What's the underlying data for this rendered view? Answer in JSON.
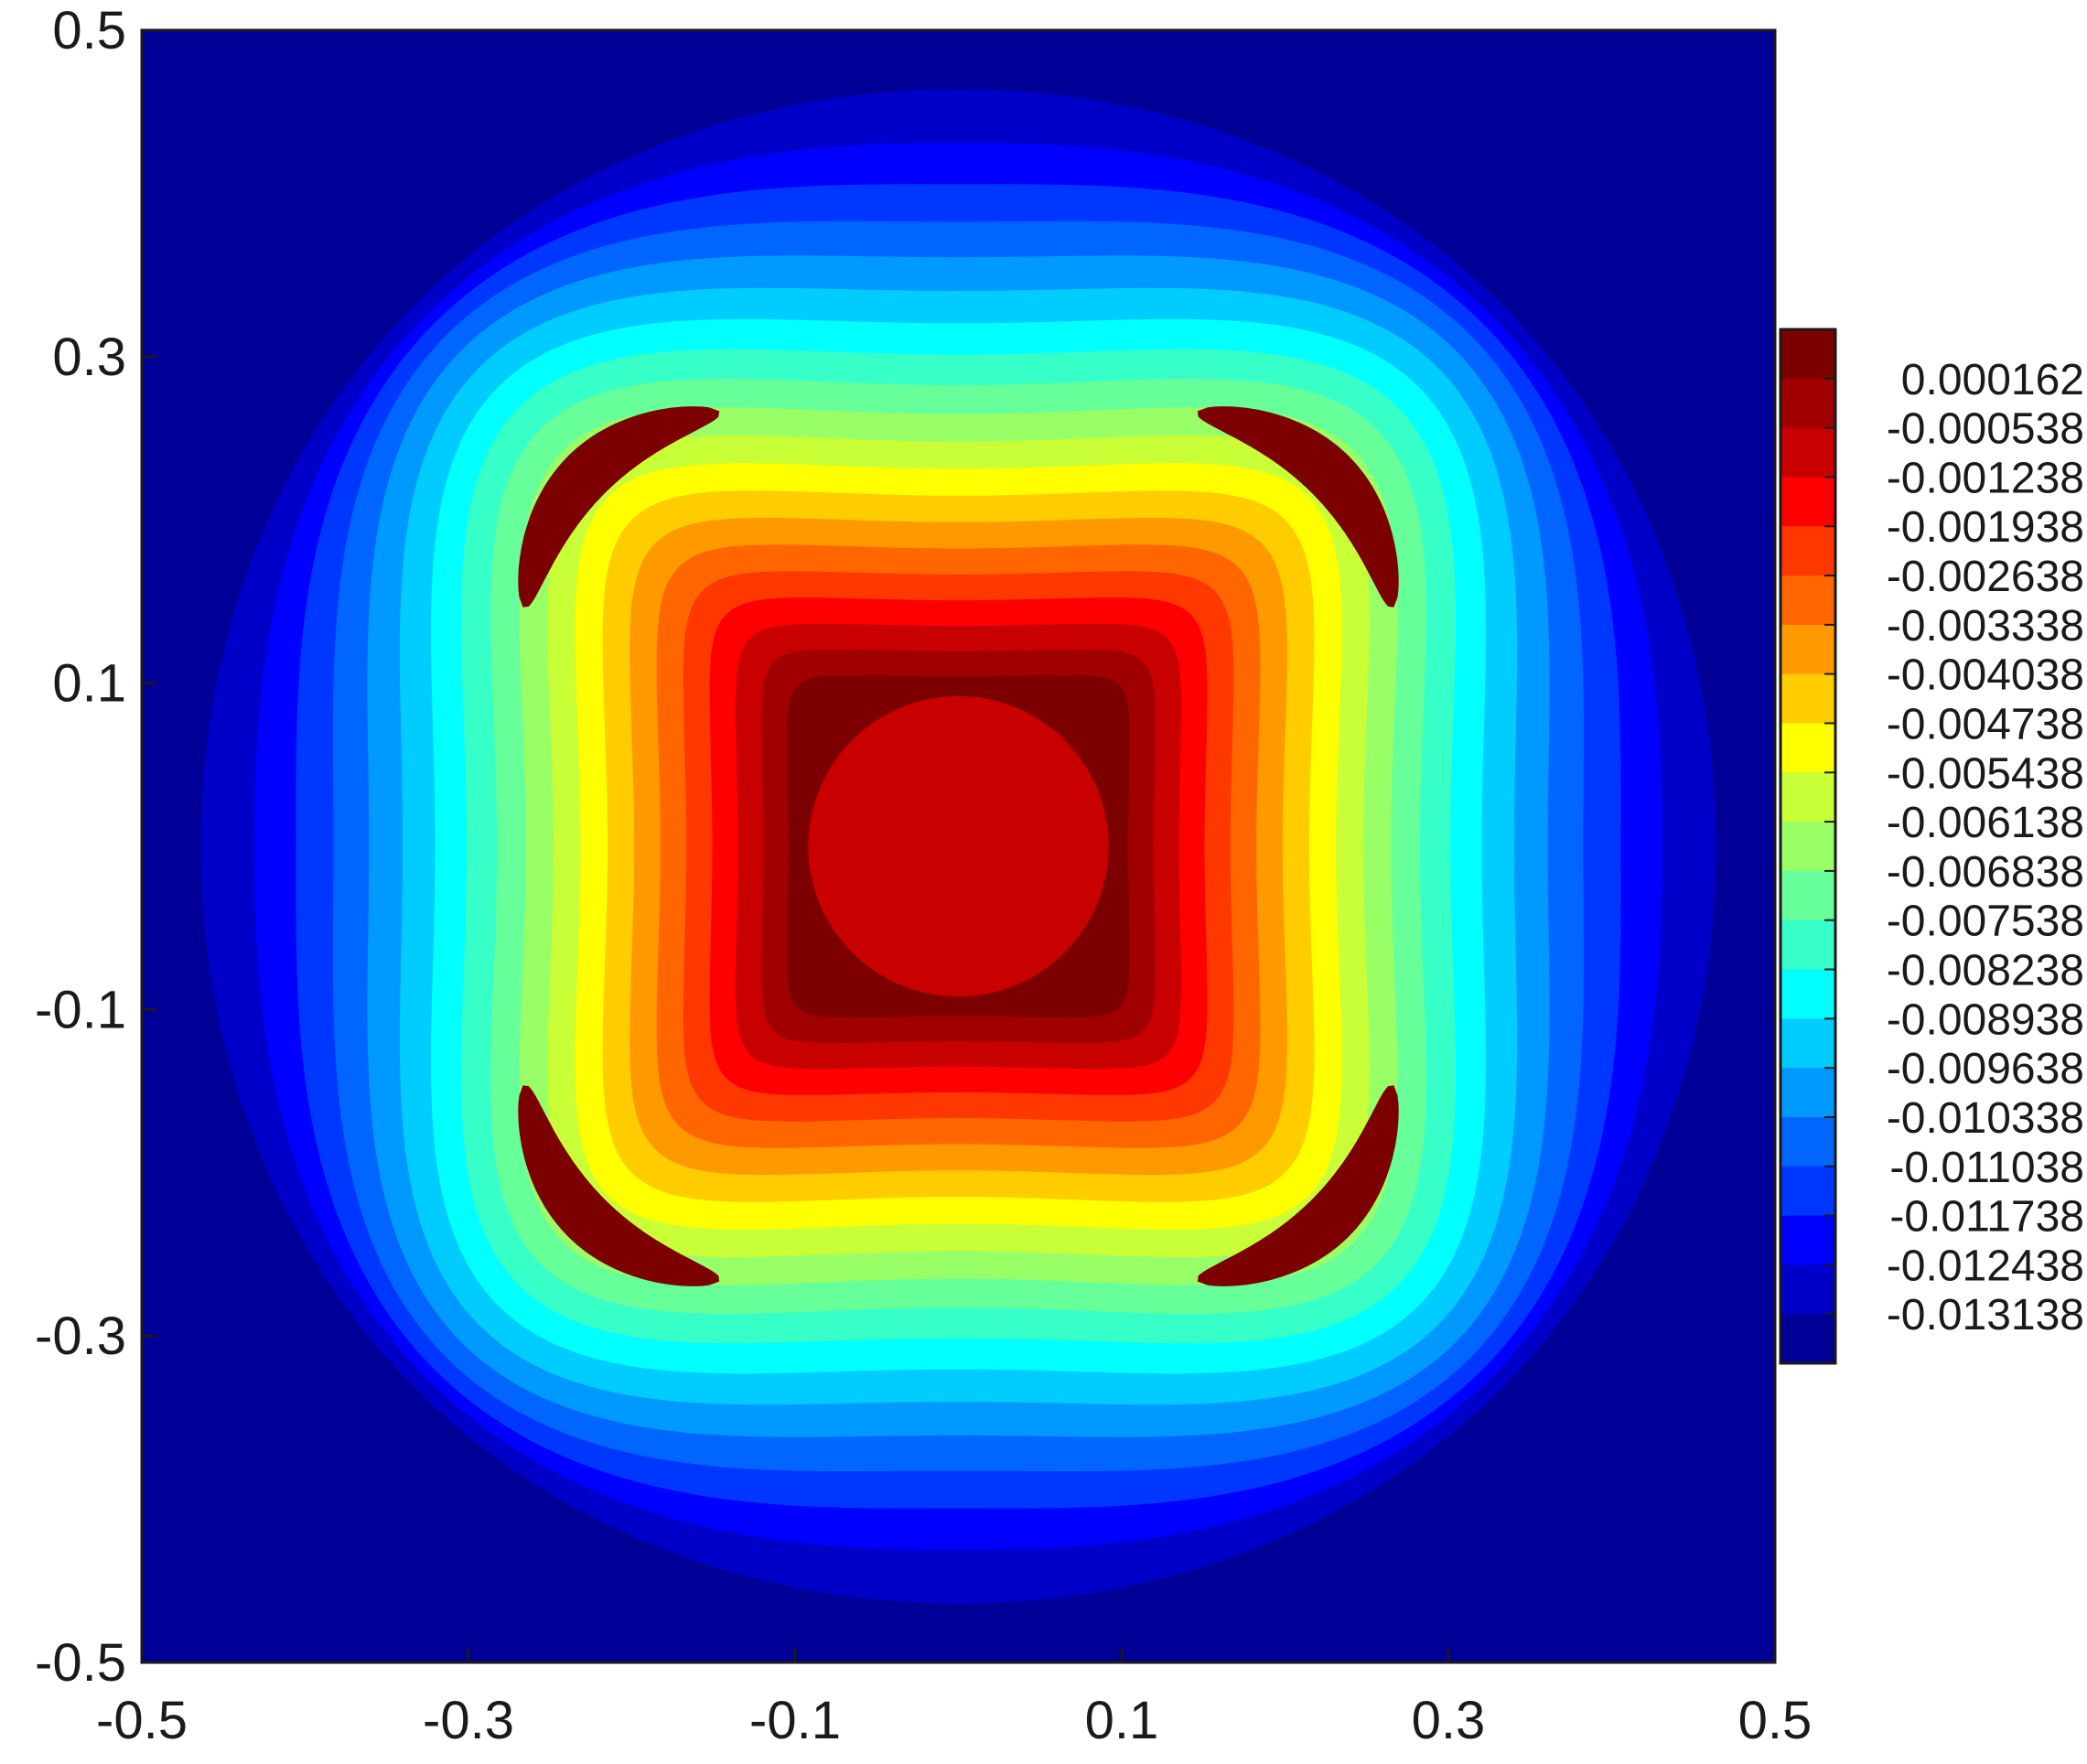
{
  "chart_data": {
    "type": "contour",
    "title": "",
    "xlabel": "",
    "ylabel": "",
    "xlim": [
      -0.5,
      0.5
    ],
    "ylim": [
      -0.5,
      0.5
    ],
    "x_ticks": [
      "-0.5",
      "-0.3",
      "-0.1",
      "0.1",
      "0.3",
      "0.5"
    ],
    "y_ticks": [
      "0.5",
      "0.3",
      "0.1",
      "-0.1",
      "-0.3",
      "-0.5"
    ],
    "grid": false,
    "colorbar": {
      "placement": "right",
      "levels": [
        "0.000162",
        "-0.000538",
        "-0.001238",
        "-0.001938",
        "-0.002638",
        "-0.003338",
        "-0.004038",
        "-0.004738",
        "-0.005438",
        "-0.006138",
        "-0.006838",
        "-0.007538",
        "-0.008238",
        "-0.008938",
        "-0.009638",
        "-0.010338",
        "-0.011038",
        "-0.011738",
        "-0.012438",
        "-0.013138"
      ],
      "colors": [
        "#7d0000",
        "#a00000",
        "#c80000",
        "#ff0000",
        "#ff3700",
        "#ff6600",
        "#ff9900",
        "#ffcc00",
        "#ffff00",
        "#c8ff37",
        "#99ff66",
        "#66ff99",
        "#37ffc8",
        "#00ffff",
        "#00ccff",
        "#0099ff",
        "#0066ff",
        "#0037ff",
        "#0000ff",
        "#0000c8",
        "#000096"
      ]
    },
    "field": {
      "description_levels": "level 0 outermost (min) to innermost (max)",
      "center_value_band": "-0.001238 to -0.000538",
      "plateau_value_band": "-0.000538 to 0.000162",
      "local_max_band": "above 0.000162",
      "local_max_count": 4
    }
  }
}
